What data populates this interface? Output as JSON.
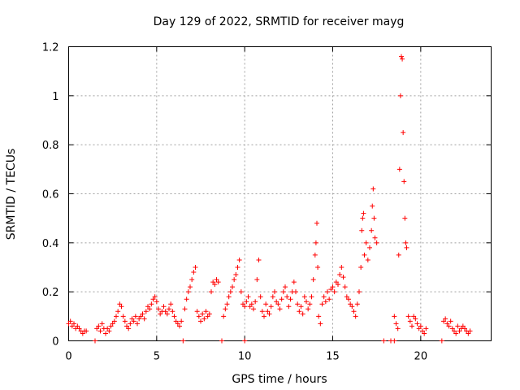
{
  "chart_data": {
    "type": "scatter",
    "title": "Day 129 of 2022, SRMTID for receiver mayg",
    "xlabel": "GPS time / hours",
    "ylabel": "SRMTID / TECUs",
    "xlim": [
      0,
      24
    ],
    "ylim": [
      0,
      1.2
    ],
    "xticks": [
      0,
      5,
      10,
      15,
      20
    ],
    "yticks": [
      0,
      0.2,
      0.4,
      0.6,
      0.8,
      1,
      1.2
    ],
    "xtick_labels": [
      "0",
      "5",
      "10",
      "15",
      "20"
    ],
    "ytick_labels": [
      "0",
      "0.2",
      "0.4",
      "0.6",
      "0.8",
      "1",
      "1.2"
    ],
    "grid": true,
    "marker": "+",
    "color": "#ff0000",
    "series": [
      {
        "name": "SRMTID",
        "points": [
          [
            0.0,
            0.07
          ],
          [
            0.1,
            0.08
          ],
          [
            0.2,
            0.06
          ],
          [
            0.3,
            0.07
          ],
          [
            0.4,
            0.05
          ],
          [
            0.5,
            0.06
          ],
          [
            0.6,
            0.05
          ],
          [
            0.7,
            0.04
          ],
          [
            0.8,
            0.03
          ],
          [
            0.9,
            0.04
          ],
          [
            1.0,
            0.04
          ],
          [
            1.5,
            0.0
          ],
          [
            1.6,
            0.05
          ],
          [
            1.7,
            0.06
          ],
          [
            1.8,
            0.04
          ],
          [
            1.9,
            0.07
          ],
          [
            2.0,
            0.05
          ],
          [
            2.1,
            0.03
          ],
          [
            2.2,
            0.05
          ],
          [
            2.3,
            0.04
          ],
          [
            2.4,
            0.06
          ],
          [
            2.5,
            0.07
          ],
          [
            2.6,
            0.08
          ],
          [
            2.7,
            0.1
          ],
          [
            2.8,
            0.12
          ],
          [
            2.9,
            0.15
          ],
          [
            3.0,
            0.14
          ],
          [
            3.1,
            0.1
          ],
          [
            3.2,
            0.08
          ],
          [
            3.3,
            0.06
          ],
          [
            3.4,
            0.05
          ],
          [
            3.5,
            0.07
          ],
          [
            3.6,
            0.09
          ],
          [
            3.7,
            0.08
          ],
          [
            3.8,
            0.1
          ],
          [
            3.9,
            0.07
          ],
          [
            4.0,
            0.09
          ],
          [
            4.1,
            0.1
          ],
          [
            4.2,
            0.11
          ],
          [
            4.3,
            0.09
          ],
          [
            4.4,
            0.12
          ],
          [
            4.5,
            0.14
          ],
          [
            4.6,
            0.13
          ],
          [
            4.7,
            0.15
          ],
          [
            4.8,
            0.17
          ],
          [
            4.9,
            0.18
          ],
          [
            5.0,
            0.16
          ],
          [
            5.1,
            0.13
          ],
          [
            5.2,
            0.11
          ],
          [
            5.3,
            0.12
          ],
          [
            5.4,
            0.14
          ],
          [
            5.5,
            0.12
          ],
          [
            5.6,
            0.11
          ],
          [
            5.7,
            0.13
          ],
          [
            5.8,
            0.15
          ],
          [
            5.9,
            0.12
          ],
          [
            6.0,
            0.1
          ],
          [
            6.1,
            0.08
          ],
          [
            6.2,
            0.07
          ],
          [
            6.3,
            0.06
          ],
          [
            6.4,
            0.08
          ],
          [
            6.5,
            0.0
          ],
          [
            6.6,
            0.13
          ],
          [
            6.7,
            0.17
          ],
          [
            6.8,
            0.2
          ],
          [
            6.9,
            0.22
          ],
          [
            7.0,
            0.25
          ],
          [
            7.1,
            0.28
          ],
          [
            7.2,
            0.3
          ],
          [
            7.3,
            0.12
          ],
          [
            7.4,
            0.1
          ],
          [
            7.5,
            0.08
          ],
          [
            7.6,
            0.11
          ],
          [
            7.7,
            0.09
          ],
          [
            7.8,
            0.12
          ],
          [
            7.9,
            0.1
          ],
          [
            8.0,
            0.11
          ],
          [
            8.1,
            0.2
          ],
          [
            8.2,
            0.24
          ],
          [
            8.3,
            0.23
          ],
          [
            8.4,
            0.25
          ],
          [
            8.5,
            0.24
          ],
          [
            8.7,
            0.0
          ],
          [
            8.8,
            0.1
          ],
          [
            8.9,
            0.13
          ],
          [
            9.0,
            0.15
          ],
          [
            9.1,
            0.18
          ],
          [
            9.2,
            0.2
          ],
          [
            9.3,
            0.22
          ],
          [
            9.4,
            0.25
          ],
          [
            9.5,
            0.27
          ],
          [
            9.6,
            0.3
          ],
          [
            9.7,
            0.33
          ],
          [
            9.8,
            0.2
          ],
          [
            9.9,
            0.15
          ],
          [
            10.0,
            0.14
          ],
          [
            10.0,
            0.0
          ],
          [
            10.1,
            0.16
          ],
          [
            10.2,
            0.18
          ],
          [
            10.3,
            0.14
          ],
          [
            10.4,
            0.15
          ],
          [
            10.5,
            0.13
          ],
          [
            10.6,
            0.16
          ],
          [
            10.7,
            0.25
          ],
          [
            10.8,
            0.33
          ],
          [
            10.9,
            0.18
          ],
          [
            11.0,
            0.12
          ],
          [
            11.1,
            0.1
          ],
          [
            11.2,
            0.15
          ],
          [
            11.3,
            0.12
          ],
          [
            11.4,
            0.11
          ],
          [
            11.5,
            0.14
          ],
          [
            11.6,
            0.18
          ],
          [
            11.7,
            0.2
          ],
          [
            11.8,
            0.16
          ],
          [
            11.9,
            0.15
          ],
          [
            12.0,
            0.13
          ],
          [
            12.1,
            0.17
          ],
          [
            12.2,
            0.2
          ],
          [
            12.3,
            0.22
          ],
          [
            12.4,
            0.18
          ],
          [
            12.5,
            0.14
          ],
          [
            12.6,
            0.17
          ],
          [
            12.7,
            0.2
          ],
          [
            12.8,
            0.24
          ],
          [
            12.9,
            0.2
          ],
          [
            13.0,
            0.15
          ],
          [
            13.1,
            0.12
          ],
          [
            13.2,
            0.14
          ],
          [
            13.3,
            0.11
          ],
          [
            13.4,
            0.18
          ],
          [
            13.5,
            0.16
          ],
          [
            13.6,
            0.13
          ],
          [
            13.7,
            0.15
          ],
          [
            13.8,
            0.18
          ],
          [
            13.9,
            0.25
          ],
          [
            14.0,
            0.35
          ],
          [
            14.05,
            0.4
          ],
          [
            14.1,
            0.48
          ],
          [
            14.15,
            0.3
          ],
          [
            14.2,
            0.1
          ],
          [
            14.3,
            0.07
          ],
          [
            14.4,
            0.15
          ],
          [
            14.5,
            0.18
          ],
          [
            14.6,
            0.16
          ],
          [
            14.7,
            0.2
          ],
          [
            14.8,
            0.17
          ],
          [
            14.9,
            0.21
          ],
          [
            15.0,
            0.22
          ],
          [
            15.1,
            0.2
          ],
          [
            15.2,
            0.24
          ],
          [
            15.3,
            0.23
          ],
          [
            15.4,
            0.27
          ],
          [
            15.5,
            0.3
          ],
          [
            15.6,
            0.26
          ],
          [
            15.7,
            0.22
          ],
          [
            15.8,
            0.18
          ],
          [
            15.9,
            0.17
          ],
          [
            16.0,
            0.15
          ],
          [
            16.1,
            0.14
          ],
          [
            16.2,
            0.12
          ],
          [
            16.3,
            0.1
          ],
          [
            16.4,
            0.15
          ],
          [
            16.5,
            0.2
          ],
          [
            16.6,
            0.3
          ],
          [
            16.65,
            0.45
          ],
          [
            16.7,
            0.5
          ],
          [
            16.75,
            0.52
          ],
          [
            16.8,
            0.35
          ],
          [
            16.9,
            0.4
          ],
          [
            17.0,
            0.33
          ],
          [
            17.1,
            0.38
          ],
          [
            17.2,
            0.45
          ],
          [
            17.25,
            0.55
          ],
          [
            17.3,
            0.62
          ],
          [
            17.35,
            0.5
          ],
          [
            17.4,
            0.42
          ],
          [
            17.5,
            0.4
          ],
          [
            17.9,
            0.0
          ],
          [
            18.3,
            0.0
          ],
          [
            18.5,
            0.0
          ],
          [
            18.5,
            0.1
          ],
          [
            18.6,
            0.07
          ],
          [
            18.7,
            0.05
          ],
          [
            18.75,
            0.35
          ],
          [
            18.8,
            0.7
          ],
          [
            18.85,
            1.0
          ],
          [
            18.9,
            1.16
          ],
          [
            18.95,
            1.15
          ],
          [
            19.0,
            0.85
          ],
          [
            19.05,
            0.65
          ],
          [
            19.1,
            0.5
          ],
          [
            19.15,
            0.4
          ],
          [
            19.2,
            0.38
          ],
          [
            19.3,
            0.1
          ],
          [
            19.4,
            0.08
          ],
          [
            19.5,
            0.06
          ],
          [
            19.6,
            0.1
          ],
          [
            19.7,
            0.09
          ],
          [
            19.8,
            0.07
          ],
          [
            19.9,
            0.05
          ],
          [
            20.0,
            0.06
          ],
          [
            20.1,
            0.04
          ],
          [
            20.2,
            0.03
          ],
          [
            20.3,
            0.05
          ],
          [
            21.2,
            0.0
          ],
          [
            21.3,
            0.08
          ],
          [
            21.4,
            0.09
          ],
          [
            21.5,
            0.07
          ],
          [
            21.6,
            0.06
          ],
          [
            21.7,
            0.08
          ],
          [
            21.8,
            0.05
          ],
          [
            21.9,
            0.04
          ],
          [
            22.0,
            0.03
          ],
          [
            22.1,
            0.06
          ],
          [
            22.2,
            0.04
          ],
          [
            22.3,
            0.05
          ],
          [
            22.4,
            0.06
          ],
          [
            22.5,
            0.05
          ],
          [
            22.6,
            0.04
          ],
          [
            22.7,
            0.03
          ],
          [
            22.8,
            0.04
          ]
        ]
      }
    ]
  }
}
